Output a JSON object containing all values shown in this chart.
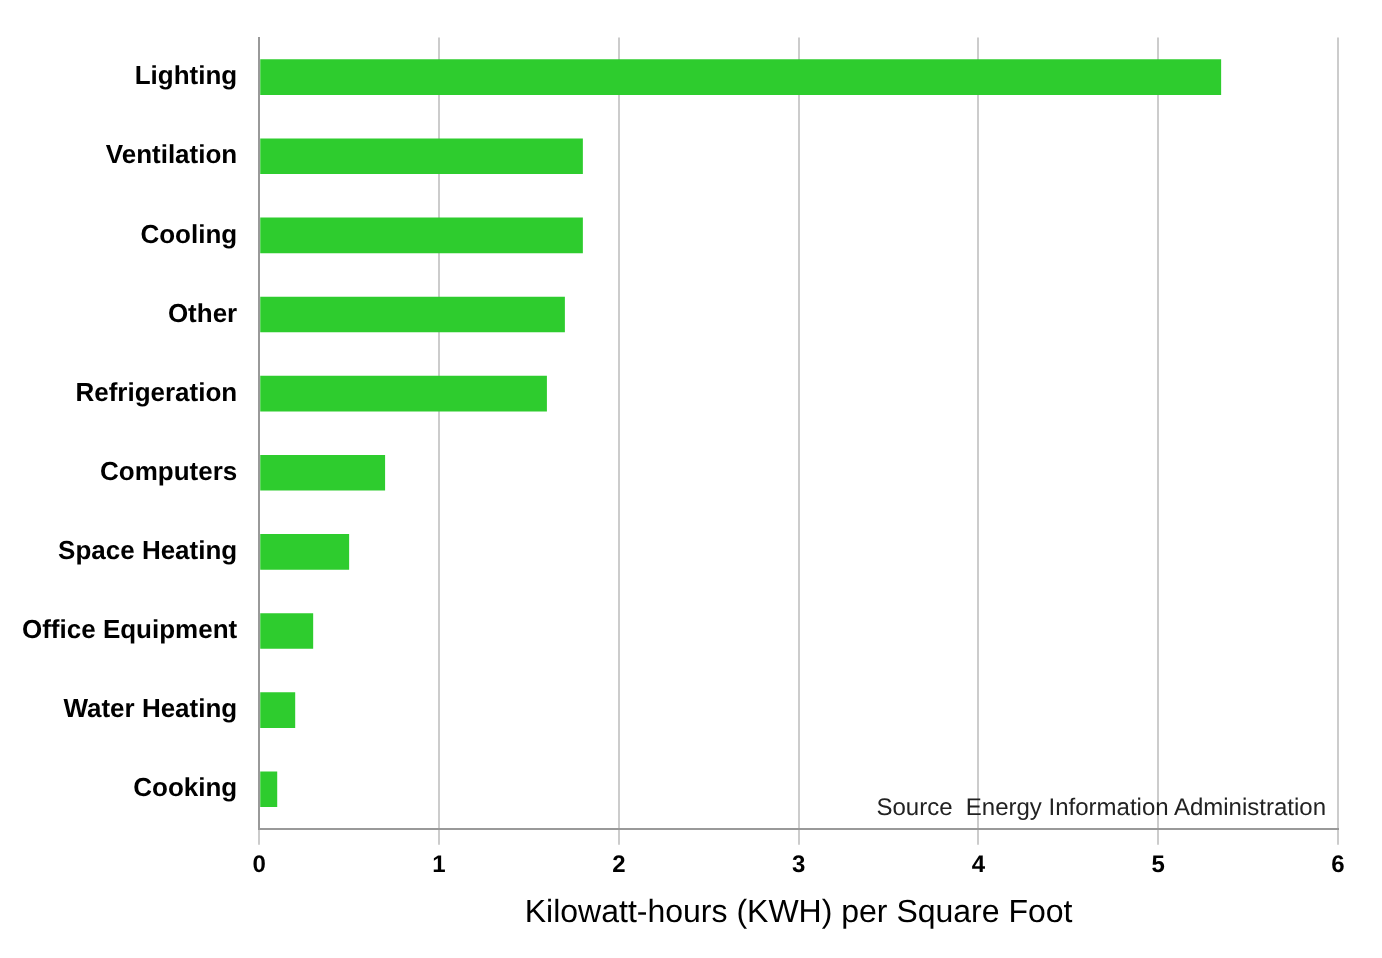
{
  "chart_data": {
    "type": "bar",
    "orientation": "horizontal",
    "xlabel": "Kilowatt-hours (KWH) per Square Foot",
    "categories": [
      "Lighting",
      "Ventilation",
      "Cooling",
      "Other",
      "Refrigeration",
      "Computers",
      "Space Heating",
      "Office Equipment",
      "Water Heating",
      "Cooking"
    ],
    "values": [
      5.35,
      1.8,
      1.8,
      1.7,
      1.6,
      0.7,
      0.5,
      0.3,
      0.2,
      0.1
    ],
    "color": "#2ecc2e",
    "xlim": [
      0,
      6
    ],
    "xticks": [
      0,
      1,
      2,
      3,
      4,
      5,
      6
    ],
    "grid": "x",
    "annotations": [
      "Source  Energy Information Administration"
    ]
  }
}
